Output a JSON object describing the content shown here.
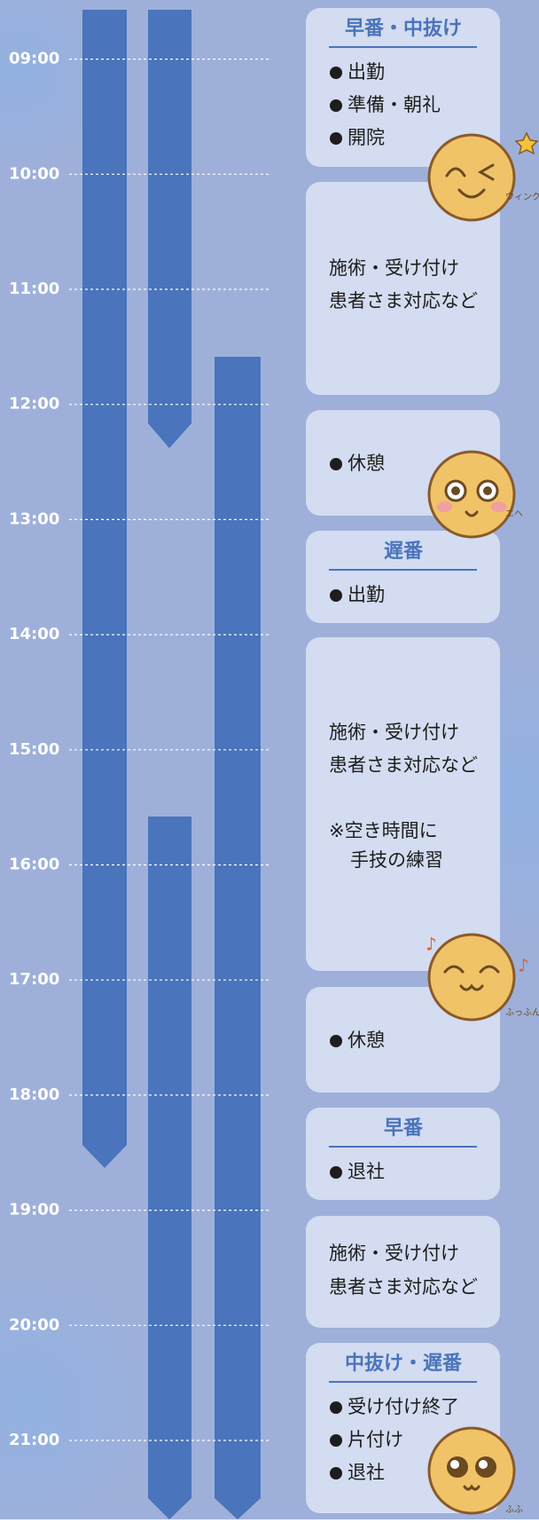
{
  "times": [
    "09:00",
    "10:00",
    "11:00",
    "12:00",
    "13:00",
    "14:00",
    "15:00",
    "16:00",
    "17:00",
    "18:00",
    "19:00",
    "20:00",
    "21:00"
  ],
  "blocks": [
    {
      "title": "早番・中抜け",
      "items": [
        "出勤",
        "準備・朝礼",
        "開院"
      ]
    },
    {
      "lines": [
        "施術・受け付け",
        "患者さま対応など"
      ]
    },
    {
      "items": [
        "休憩"
      ]
    },
    {
      "title": "遅番",
      "items": [
        "出勤"
      ]
    },
    {
      "lines": [
        "施術・受け付け",
        "患者さま対応など",
        "※空き時間に",
        "手技の練習"
      ]
    },
    {
      "items": [
        "休憩"
      ]
    },
    {
      "title": "早番",
      "items": [
        "退社"
      ]
    },
    {
      "lines": [
        "施術・受け付け",
        "患者さま対応など"
      ]
    },
    {
      "title": "中抜け・遅番",
      "items": [
        "受け付け終了",
        "片付け",
        "退社"
      ]
    }
  ],
  "faces": [
    {
      "caption": "ウィンク"
    },
    {
      "caption": "エヘ"
    },
    {
      "caption": "ふっふん"
    },
    {
      "caption": "ふふ"
    }
  ]
}
